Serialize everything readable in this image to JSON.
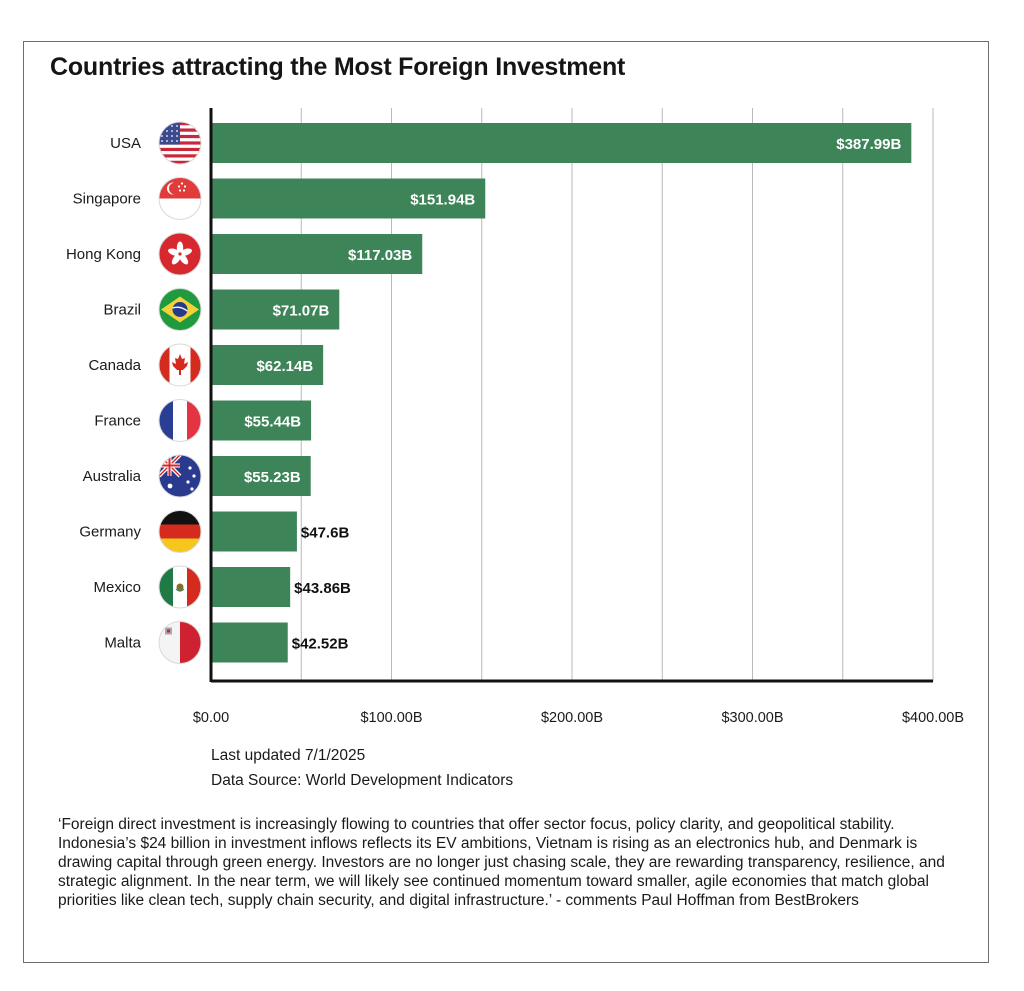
{
  "title": "Countries attracting the Most Foreign Investment",
  "colors": {
    "bar": "#3d8558",
    "grid": "#b9b9b9",
    "axis": "#111111",
    "label_inside": "#ffffff",
    "label_outside": "#111111"
  },
  "chart_data": {
    "type": "bar",
    "orientation": "horizontal",
    "title": "Countries attracting the Most Foreign Investment",
    "categories": [
      "USA",
      "Singapore",
      "Hong Kong",
      "Brazil",
      "Canada",
      "France",
      "Australia",
      "Germany",
      "Mexico",
      "Malta"
    ],
    "flag_icons": [
      "usa-flag-icon",
      "singapore-flag-icon",
      "hong-kong-flag-icon",
      "brazil-flag-icon",
      "canada-flag-icon",
      "france-flag-icon",
      "australia-flag-icon",
      "germany-flag-icon",
      "mexico-flag-icon",
      "malta-flag-icon"
    ],
    "values": [
      387.99,
      151.94,
      117.03,
      71.07,
      62.14,
      55.44,
      55.23,
      47.6,
      43.86,
      42.52
    ],
    "value_labels": [
      "$387.99B",
      "$151.94B",
      "$117.03B",
      "$71.07B",
      "$62.14B",
      "$55.44B",
      "$55.23B",
      "$47.6B",
      "$43.86B",
      "$42.52B"
    ],
    "xlim": [
      0,
      400
    ],
    "xticks": [
      0,
      100,
      200,
      300,
      400
    ],
    "xtick_labels": [
      "$0.00",
      "$100.00B",
      "$200.00B",
      "$300.00B",
      "$400.00B"
    ],
    "grid": true
  },
  "footer": {
    "updated": "Last updated 7/1/2025",
    "source": "Data Source: World Development Indicators"
  },
  "quote": "‘Foreign direct investment is increasingly flowing to countries that offer sector focus, policy clarity, and geopolitical stability. Indonesia’s $24 billion in investment inflows reflects its EV ambitions, Vietnam is rising as an electronics hub, and Denmark is drawing capital through green energy. Investors are no longer just chasing scale, they are rewarding transparency, resilience, and strategic alignment. In the near term, we will likely see continued momentum toward smaller, agile economies that match global priorities like clean tech, supply chain security, and digital infrastructure.’ - comments Paul Hoffman from BestBrokers"
}
